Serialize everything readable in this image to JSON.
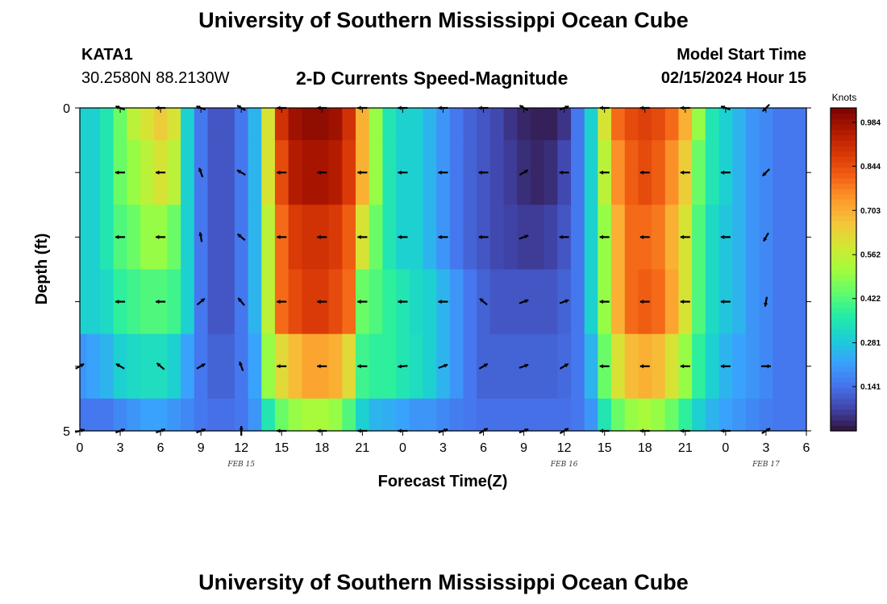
{
  "header": {
    "title": "University of Southern Mississippi Ocean Cube",
    "station": "KATA1",
    "coordinates": "30.2580N  88.2130W",
    "chart_title": "2-D Currents Speed-Magnitude",
    "model_start_label": "Model Start Time",
    "model_start_value": "02/15/2024 Hour 15"
  },
  "footer": {
    "title": "University of Southern Mississippi Ocean Cube"
  },
  "colors": {
    "arrow": "#000000",
    "colormap": [
      "#30123b",
      "#4145ab",
      "#4675ed",
      "#39a2fc",
      "#1bcfd4",
      "#24eca6",
      "#61fc6c",
      "#a4fc3b",
      "#d1e834",
      "#f3c63a",
      "#fe9b2d",
      "#f36315",
      "#d93806",
      "#b11901",
      "#7a0402"
    ]
  },
  "chart_data": {
    "type": "heatmap",
    "title": "2-D Currents Speed-Magnitude",
    "xlabel": "Forecast Time(Z)",
    "ylabel": "Depth (ft)",
    "x_hours": [
      0,
      3,
      6,
      9,
      12,
      15,
      18,
      21,
      24,
      27,
      30,
      33,
      36,
      39,
      42,
      45,
      48,
      51,
      54
    ],
    "x_tick_labels": [
      "0",
      "3",
      "6",
      "9",
      "12",
      "15",
      "18",
      "21",
      "0",
      "3",
      "6",
      "9",
      "12",
      "15",
      "18",
      "21",
      "0",
      "3",
      "6"
    ],
    "date_labels": [
      {
        "hour": 12,
        "text": "FEB 15"
      },
      {
        "hour": 36,
        "text": "FEB 16"
      },
      {
        "hour": 51,
        "text": "FEB 17"
      }
    ],
    "y_tick_labels": [
      {
        "depth": 0,
        "text": "0"
      },
      {
        "depth": 5,
        "text": "5"
      }
    ],
    "ylim": [
      0,
      5
    ],
    "xlim": [
      0,
      54
    ],
    "colorbar": {
      "label": "Knots",
      "ticks": [
        0.141,
        0.281,
        0.422,
        0.562,
        0.703,
        0.844,
        0.984
      ],
      "range": [
        0,
        1.03
      ]
    },
    "time_keys": [
      0,
      1,
      2,
      3,
      4,
      5,
      6,
      7,
      8,
      9,
      10,
      11,
      12,
      13,
      14,
      15,
      16,
      17,
      18,
      19,
      20,
      21,
      22,
      23,
      24,
      25,
      26,
      27,
      28,
      29,
      30,
      31,
      32,
      33,
      34,
      35,
      36,
      37,
      38,
      39,
      40,
      41,
      42,
      43,
      44,
      45,
      46,
      47,
      48,
      49,
      50,
      51,
      52,
      53,
      54
    ],
    "layer_depths": [
      0.0,
      1.0,
      2.0,
      3.0,
      4.0,
      5.0
    ],
    "speed": [
      [
        0.3,
        0.3,
        0.35,
        0.45,
        0.55,
        0.6,
        0.65,
        0.6,
        0.3,
        0.15,
        0.1,
        0.1,
        0.15,
        0.25,
        0.6,
        0.9,
        0.98,
        1.0,
        1.0,
        0.98,
        0.9,
        0.7,
        0.5,
        0.35,
        0.3,
        0.3,
        0.25,
        0.2,
        0.15,
        0.12,
        0.1,
        0.08,
        0.05,
        0.03,
        0.02,
        0.02,
        0.05,
        0.15,
        0.3,
        0.6,
        0.8,
        0.85,
        0.87,
        0.85,
        0.8,
        0.7,
        0.5,
        0.35,
        0.3,
        0.25,
        0.2,
        0.18,
        0.15,
        0.15,
        0.15
      ],
      [
        0.3,
        0.3,
        0.35,
        0.45,
        0.5,
        0.55,
        0.6,
        0.55,
        0.3,
        0.15,
        0.1,
        0.1,
        0.15,
        0.25,
        0.6,
        0.85,
        0.95,
        0.97,
        0.97,
        0.95,
        0.88,
        0.7,
        0.5,
        0.35,
        0.3,
        0.3,
        0.25,
        0.2,
        0.15,
        0.12,
        0.1,
        0.08,
        0.06,
        0.04,
        0.03,
        0.04,
        0.08,
        0.15,
        0.3,
        0.55,
        0.75,
        0.82,
        0.85,
        0.82,
        0.75,
        0.65,
        0.45,
        0.35,
        0.3,
        0.25,
        0.2,
        0.18,
        0.15,
        0.15,
        0.15
      ],
      [
        0.3,
        0.3,
        0.35,
        0.42,
        0.45,
        0.5,
        0.5,
        0.45,
        0.3,
        0.15,
        0.1,
        0.1,
        0.15,
        0.25,
        0.55,
        0.8,
        0.88,
        0.9,
        0.9,
        0.88,
        0.82,
        0.6,
        0.45,
        0.35,
        0.3,
        0.3,
        0.25,
        0.2,
        0.15,
        0.12,
        0.1,
        0.08,
        0.07,
        0.06,
        0.06,
        0.07,
        0.1,
        0.15,
        0.3,
        0.5,
        0.7,
        0.8,
        0.8,
        0.78,
        0.7,
        0.6,
        0.42,
        0.32,
        0.28,
        0.25,
        0.2,
        0.18,
        0.15,
        0.15,
        0.15
      ],
      [
        0.3,
        0.3,
        0.32,
        0.38,
        0.4,
        0.42,
        0.42,
        0.4,
        0.3,
        0.15,
        0.1,
        0.1,
        0.15,
        0.25,
        0.55,
        0.8,
        0.85,
        0.88,
        0.88,
        0.85,
        0.8,
        0.45,
        0.42,
        0.38,
        0.35,
        0.32,
        0.3,
        0.25,
        0.2,
        0.15,
        0.12,
        0.1,
        0.1,
        0.1,
        0.1,
        0.1,
        0.12,
        0.15,
        0.3,
        0.5,
        0.7,
        0.8,
        0.82,
        0.8,
        0.72,
        0.6,
        0.42,
        0.32,
        0.28,
        0.25,
        0.2,
        0.18,
        0.15,
        0.15,
        0.15
      ],
      [
        0.2,
        0.22,
        0.25,
        0.3,
        0.32,
        0.33,
        0.33,
        0.3,
        0.22,
        0.15,
        0.12,
        0.12,
        0.15,
        0.22,
        0.5,
        0.62,
        0.68,
        0.72,
        0.72,
        0.7,
        0.62,
        0.4,
        0.38,
        0.38,
        0.35,
        0.33,
        0.3,
        0.25,
        0.2,
        0.15,
        0.12,
        0.12,
        0.12,
        0.12,
        0.12,
        0.12,
        0.13,
        0.15,
        0.25,
        0.45,
        0.6,
        0.68,
        0.7,
        0.68,
        0.6,
        0.5,
        0.38,
        0.3,
        0.25,
        0.22,
        0.2,
        0.18,
        0.15,
        0.15,
        0.15
      ],
      [
        0.15,
        0.15,
        0.15,
        0.18,
        0.2,
        0.22,
        0.22,
        0.2,
        0.18,
        0.15,
        0.14,
        0.14,
        0.15,
        0.2,
        0.35,
        0.45,
        0.5,
        0.52,
        0.52,
        0.5,
        0.42,
        0.3,
        0.25,
        0.24,
        0.22,
        0.2,
        0.2,
        0.18,
        0.16,
        0.15,
        0.14,
        0.14,
        0.14,
        0.14,
        0.14,
        0.14,
        0.14,
        0.15,
        0.2,
        0.35,
        0.45,
        0.5,
        0.52,
        0.5,
        0.45,
        0.38,
        0.3,
        0.25,
        0.22,
        0.2,
        0.18,
        0.16,
        0.15,
        0.15,
        0.15
      ]
    ],
    "arrow_hours": [
      0,
      3,
      6,
      9,
      12,
      15,
      18,
      21,
      24,
      27,
      30,
      33,
      36,
      39,
      42,
      45,
      48,
      51,
      54
    ],
    "arrow_depths": [
      0,
      1,
      2,
      3,
      4,
      5
    ],
    "arrow_angles_deg": [
      [
        null,
        160,
        180,
        160,
        150,
        180,
        180,
        180,
        180,
        180,
        180,
        150,
        20,
        180,
        180,
        180,
        160,
        225,
        null
      ],
      [
        null,
        180,
        180,
        110,
        150,
        180,
        180,
        180,
        180,
        180,
        180,
        30,
        180,
        180,
        180,
        180,
        180,
        225,
        null
      ],
      [
        null,
        180,
        180,
        100,
        140,
        180,
        180,
        180,
        180,
        180,
        180,
        20,
        180,
        180,
        180,
        180,
        180,
        240,
        null
      ],
      [
        null,
        180,
        180,
        40,
        130,
        180,
        180,
        180,
        180,
        180,
        140,
        20,
        20,
        180,
        180,
        180,
        180,
        260,
        null
      ],
      [
        30,
        150,
        140,
        30,
        110,
        180,
        180,
        180,
        185,
        20,
        30,
        20,
        30,
        180,
        180,
        180,
        180,
        0,
        null
      ],
      [
        15,
        20,
        20,
        20,
        90,
        180,
        180,
        180,
        180,
        20,
        30,
        20,
        30,
        180,
        180,
        180,
        180,
        30,
        null
      ]
    ]
  }
}
